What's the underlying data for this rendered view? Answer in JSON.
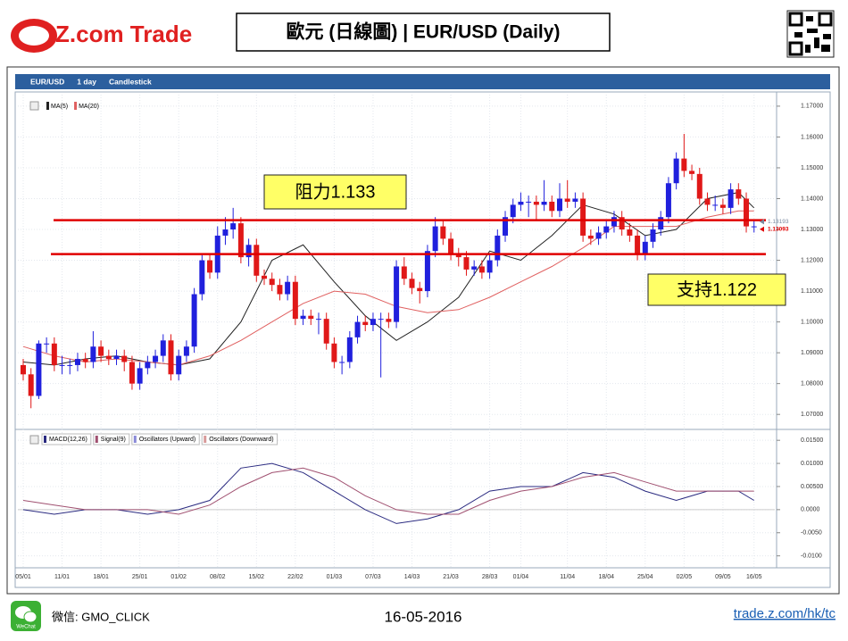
{
  "header": {
    "logo": "Z.com Trade",
    "title": "歐元 (日線圖) | EUR/USD  (Daily)"
  },
  "toolbar": [
    "EUR/USD",
    "1 day",
    "Candlestick"
  ],
  "chart_data": {
    "type": "candlestick",
    "categories": [
      "05/01",
      null,
      null,
      null,
      null,
      "11/01",
      null,
      null,
      null,
      null,
      "18/01",
      null,
      null,
      null,
      null,
      "25/01",
      null,
      null,
      null,
      null,
      "01/02",
      null,
      null,
      null,
      null,
      "08/02",
      null,
      null,
      null,
      null,
      "15/02",
      null,
      null,
      null,
      null,
      "22/02",
      null,
      null,
      null,
      null,
      "01/03",
      null,
      null,
      null,
      null,
      "07/03",
      null,
      null,
      null,
      null,
      "14/03",
      null,
      null,
      null,
      null,
      "21/03",
      null,
      null,
      null,
      null,
      "28/03",
      null,
      null,
      null,
      "01/04",
      null,
      null,
      null,
      null,
      null,
      "11/04",
      null,
      null,
      null,
      null,
      "18/04",
      null,
      null,
      null,
      null,
      "25/04",
      null,
      null,
      null,
      null,
      "02/05",
      null,
      null,
      null,
      null,
      "09/05",
      null,
      null,
      null,
      "16/05"
    ],
    "candles": [
      [
        1.086,
        1.088,
        1.081,
        1.083
      ],
      [
        1.083,
        1.085,
        1.072,
        1.076
      ],
      [
        1.076,
        1.094,
        1.075,
        1.093
      ],
      [
        1.093,
        1.095,
        1.09,
        1.093
      ],
      [
        1.093,
        1.095,
        1.084,
        1.086
      ],
      [
        1.086,
        1.089,
        1.083,
        1.086
      ],
      [
        1.086,
        1.088,
        1.083,
        1.086
      ],
      [
        1.086,
        1.09,
        1.084,
        1.088
      ],
      [
        1.088,
        1.09,
        1.085,
        1.087
      ],
      [
        1.087,
        1.097,
        1.085,
        1.092
      ],
      [
        1.092,
        1.094,
        1.087,
        1.089
      ],
      [
        1.089,
        1.091,
        1.086,
        1.088
      ],
      [
        1.088,
        1.091,
        1.086,
        1.089
      ],
      [
        1.089,
        1.091,
        1.084,
        1.087
      ],
      [
        1.087,
        1.089,
        1.078,
        1.08
      ],
      [
        1.08,
        1.087,
        1.078,
        1.085
      ],
      [
        1.085,
        1.089,
        1.083,
        1.087
      ],
      [
        1.087,
        1.091,
        1.085,
        1.089
      ],
      [
        1.089,
        1.096,
        1.087,
        1.094
      ],
      [
        1.094,
        1.096,
        1.081,
        1.083
      ],
      [
        1.083,
        1.091,
        1.081,
        1.089
      ],
      [
        1.089,
        1.094,
        1.087,
        1.092
      ],
      [
        1.092,
        1.111,
        1.09,
        1.109
      ],
      [
        1.109,
        1.122,
        1.107,
        1.12
      ],
      [
        1.12,
        1.122,
        1.114,
        1.116
      ],
      [
        1.116,
        1.131,
        1.114,
        1.128
      ],
      [
        1.128,
        1.134,
        1.125,
        1.13
      ],
      [
        1.13,
        1.137,
        1.127,
        1.132
      ],
      [
        1.132,
        1.134,
        1.119,
        1.121
      ],
      [
        1.121,
        1.127,
        1.118,
        1.125
      ],
      [
        1.125,
        1.127,
        1.113,
        1.115
      ],
      [
        1.115,
        1.117,
        1.112,
        1.114
      ],
      [
        1.114,
        1.116,
        1.11,
        1.112
      ],
      [
        1.112,
        1.114,
        1.107,
        1.109
      ],
      [
        1.109,
        1.115,
        1.107,
        1.113
      ],
      [
        1.113,
        1.115,
        1.099,
        1.101
      ],
      [
        1.101,
        1.104,
        1.099,
        1.102
      ],
      [
        1.102,
        1.104,
        1.099,
        1.101
      ],
      [
        1.101,
        1.103,
        1.096,
        1.101
      ],
      [
        1.101,
        1.103,
        1.091,
        1.093
      ],
      [
        1.093,
        1.095,
        1.085,
        1.087
      ],
      [
        1.087,
        1.089,
        1.083,
        1.087
      ],
      [
        1.087,
        1.097,
        1.085,
        1.095
      ],
      [
        1.095,
        1.102,
        1.093,
        1.1
      ],
      [
        1.1,
        1.102,
        1.097,
        1.099
      ],
      [
        1.099,
        1.103,
        1.097,
        1.101
      ],
      [
        1.101,
        1.103,
        1.082,
        1.101
      ],
      [
        1.101,
        1.103,
        1.098,
        1.1
      ],
      [
        1.1,
        1.12,
        1.098,
        1.118
      ],
      [
        1.118,
        1.121,
        1.112,
        1.114
      ],
      [
        1.114,
        1.116,
        1.109,
        1.111
      ],
      [
        1.111,
        1.113,
        1.106,
        1.11
      ],
      [
        1.11,
        1.125,
        1.108,
        1.123
      ],
      [
        1.123,
        1.134,
        1.121,
        1.131
      ],
      [
        1.131,
        1.133,
        1.125,
        1.127
      ],
      [
        1.127,
        1.129,
        1.12,
        1.122
      ],
      [
        1.122,
        1.124,
        1.118,
        1.121
      ],
      [
        1.121,
        1.123,
        1.115,
        1.117
      ],
      [
        1.117,
        1.12,
        1.115,
        1.118
      ],
      [
        1.118,
        1.12,
        1.114,
        1.116
      ],
      [
        1.116,
        1.122,
        1.114,
        1.12
      ],
      [
        1.12,
        1.13,
        1.118,
        1.128
      ],
      [
        1.128,
        1.136,
        1.126,
        1.134
      ],
      [
        1.134,
        1.14,
        1.132,
        1.138
      ],
      [
        1.138,
        1.142,
        1.136,
        1.139
      ],
      [
        1.139,
        1.141,
        1.134,
        1.139
      ],
      [
        1.139,
        1.141,
        1.133,
        1.138
      ],
      [
        1.138,
        1.146,
        1.136,
        1.139
      ],
      [
        1.139,
        1.141,
        1.134,
        1.136
      ],
      [
        1.136,
        1.145,
        1.134,
        1.14
      ],
      [
        1.14,
        1.146,
        1.137,
        1.139
      ],
      [
        1.139,
        1.142,
        1.137,
        1.14
      ],
      [
        1.14,
        1.142,
        1.126,
        1.128
      ],
      [
        1.128,
        1.13,
        1.125,
        1.127
      ],
      [
        1.127,
        1.131,
        1.125,
        1.129
      ],
      [
        1.129,
        1.133,
        1.127,
        1.131
      ],
      [
        1.131,
        1.136,
        1.129,
        1.134
      ],
      [
        1.134,
        1.136,
        1.128,
        1.13
      ],
      [
        1.13,
        1.132,
        1.126,
        1.128
      ],
      [
        1.128,
        1.13,
        1.12,
        1.122
      ],
      [
        1.122,
        1.128,
        1.12,
        1.126
      ],
      [
        1.126,
        1.132,
        1.124,
        1.13
      ],
      [
        1.13,
        1.136,
        1.128,
        1.134
      ],
      [
        1.134,
        1.147,
        1.132,
        1.145
      ],
      [
        1.145,
        1.155,
        1.143,
        1.153
      ],
      [
        1.153,
        1.161,
        1.147,
        1.149
      ],
      [
        1.149,
        1.151,
        1.146,
        1.148
      ],
      [
        1.148,
        1.15,
        1.138,
        1.14
      ],
      [
        1.14,
        1.142,
        1.136,
        1.138
      ],
      [
        1.138,
        1.141,
        1.136,
        1.138
      ],
      [
        1.138,
        1.14,
        1.135,
        1.137
      ],
      [
        1.137,
        1.145,
        1.135,
        1.143
      ],
      [
        1.143,
        1.145,
        1.138,
        1.14
      ],
      [
        1.14,
        1.142,
        1.129,
        1.131
      ],
      [
        1.131,
        1.133,
        1.129,
        1.131
      ]
    ],
    "colors": {
      "up": "#2020dd",
      "down": "#e01818"
    },
    "ylim": [
      1.066,
      1.172
    ],
    "yticks": [
      {
        "value": 1.07,
        "label": "1.07000"
      },
      {
        "value": 1.08,
        "label": "1.08000"
      },
      {
        "value": 1.09,
        "label": "1.09000"
      },
      {
        "value": 1.1,
        "label": "1.10000"
      },
      {
        "value": 1.11,
        "label": "1.11000"
      },
      {
        "value": 1.12,
        "label": "1.12000"
      },
      {
        "value": 1.13,
        "label": "1.13000"
      },
      {
        "value": 1.14,
        "label": "1.14000"
      },
      {
        "value": 1.15,
        "label": "1.15000"
      },
      {
        "value": 1.16,
        "label": "1.16000"
      },
      {
        "value": 1.17,
        "label": "1.17000"
      }
    ],
    "grid": true,
    "overlays": [
      {
        "name": "MA(5)",
        "color": "#222222",
        "x": [
          0,
          4,
          8,
          12,
          16,
          20,
          24,
          28,
          32,
          36,
          40,
          44,
          48,
          52,
          56,
          60,
          64,
          68,
          72,
          76,
          80,
          84,
          88,
          92,
          94
        ],
        "values": [
          1.087,
          1.086,
          1.088,
          1.089,
          1.087,
          1.086,
          1.088,
          1.1,
          1.12,
          1.125,
          1.113,
          1.102,
          1.094,
          1.1,
          1.108,
          1.123,
          1.12,
          1.128,
          1.138,
          1.135,
          1.128,
          1.13,
          1.14,
          1.142,
          1.137
        ]
      },
      {
        "name": "MA(20)",
        "color": "#e06060",
        "x": [
          0,
          4,
          8,
          12,
          16,
          20,
          24,
          28,
          32,
          36,
          40,
          44,
          48,
          52,
          56,
          60,
          64,
          68,
          72,
          76,
          80,
          84,
          88,
          92,
          94
        ],
        "values": [
          1.092,
          1.089,
          1.087,
          1.088,
          1.087,
          1.086,
          1.089,
          1.094,
          1.1,
          1.106,
          1.11,
          1.109,
          1.105,
          1.103,
          1.104,
          1.108,
          1.113,
          1.118,
          1.124,
          1.131,
          1.131,
          1.131,
          1.134,
          1.136,
          1.136
        ]
      }
    ],
    "levels": [
      {
        "label": "阻力1.133",
        "value": 1.133,
        "color": "#e00000"
      },
      {
        "label": "支持1.122",
        "value": 1.122,
        "color": "#e00000"
      }
    ],
    "last_prices": [
      {
        "value": 1.13193,
        "color": "#7a8aa0"
      },
      {
        "value": 1.13093,
        "color": "#e00000"
      }
    ],
    "indicator": {
      "series": [
        {
          "name": "MACD(12,26)",
          "color": "#2a2a80",
          "values": [
            0.0,
            -0.001,
            0.0,
            0.0,
            -0.001,
            0.0,
            0.002,
            0.009,
            0.01,
            0.008,
            0.004,
            0.0,
            -0.003,
            -0.002,
            0.0,
            0.004,
            0.005,
            0.005,
            0.008,
            0.007,
            0.004,
            0.002,
            0.004,
            0.004,
            0.002
          ]
        },
        {
          "name": "Signal(9)",
          "color": "#a05070",
          "values": [
            0.002,
            0.001,
            0.0,
            0.0,
            0.0,
            -0.001,
            0.001,
            0.005,
            0.008,
            0.009,
            0.007,
            0.003,
            0.0,
            -0.001,
            -0.001,
            0.002,
            0.004,
            0.005,
            0.007,
            0.008,
            0.006,
            0.004,
            0.004,
            0.004,
            0.004
          ]
        }
      ],
      "x": [
        0,
        4,
        8,
        12,
        16,
        20,
        24,
        28,
        32,
        36,
        40,
        44,
        48,
        52,
        56,
        60,
        64,
        68,
        72,
        76,
        80,
        84,
        88,
        92,
        94
      ],
      "extra_legend": [
        "Oscillators (Upward)",
        "Oscillators (Downward)"
      ],
      "ylim": [
        -0.012,
        0.016
      ],
      "yticks": [
        {
          "value": -0.01,
          "label": "-0.0100"
        },
        {
          "value": -0.005,
          "label": "-0.0050"
        },
        {
          "value": 0,
          "label": "0.0000"
        },
        {
          "value": 0.005,
          "label": "0.00500"
        },
        {
          "value": 0.01,
          "label": "0.01000"
        },
        {
          "value": 0.015,
          "label": "0.01500"
        }
      ]
    }
  },
  "footer": {
    "wechat_icon": "WeChat",
    "wechat": "微信: GMO_CLICK",
    "date": "16-05-2016",
    "link": "trade.z.com/hk/tc"
  }
}
